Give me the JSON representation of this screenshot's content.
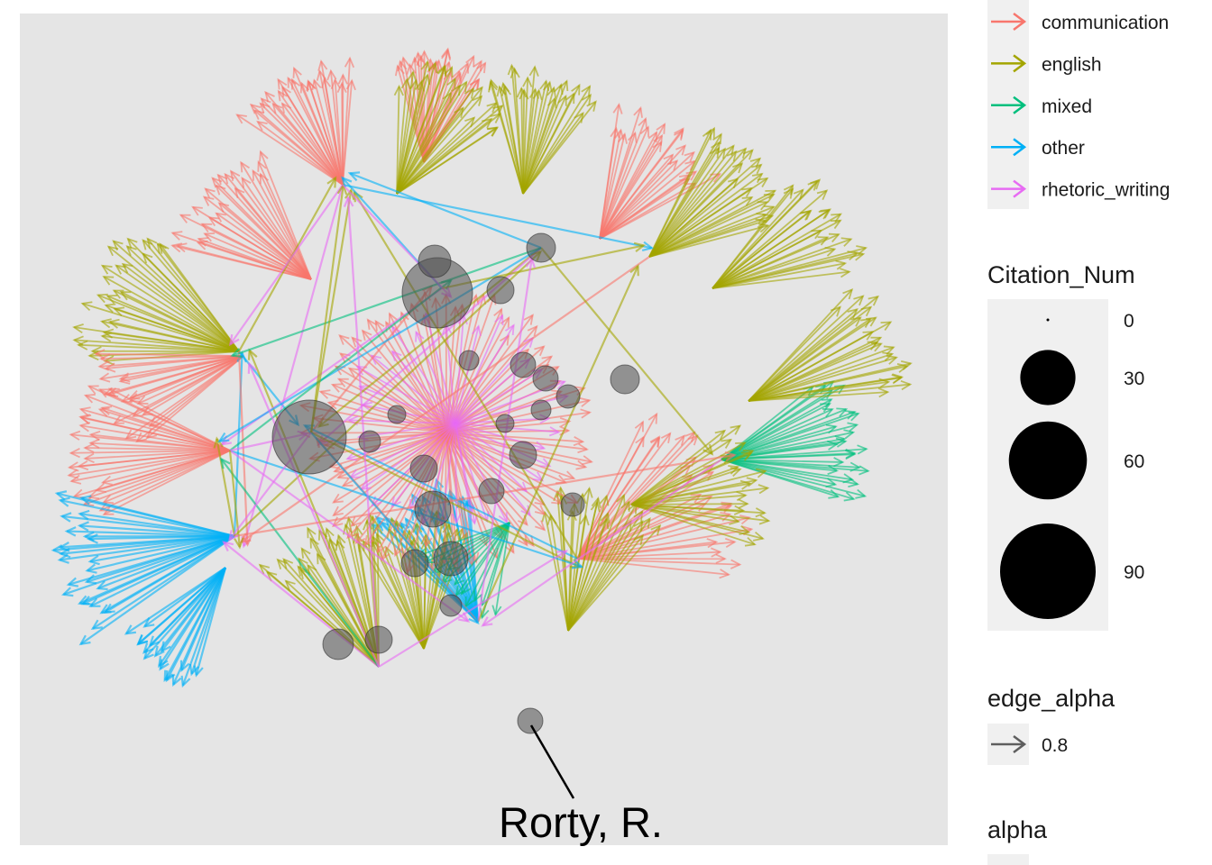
{
  "chart_data": {
    "type": "network",
    "panel_background": "#e5e5e5",
    "edge_alpha_value": 0.8,
    "color_legend": {
      "title": "",
      "entries": [
        {
          "label": "communication",
          "color": "#F8766D"
        },
        {
          "label": "english",
          "color": "#A3A500"
        },
        {
          "label": "mixed",
          "color": "#00BF7D"
        },
        {
          "label": "other",
          "color": "#00B0F6"
        },
        {
          "label": "rhetoric_writing",
          "color": "#E76BF3"
        }
      ]
    },
    "size_legend": {
      "title": "Citation_Num",
      "breaks": [
        0,
        30,
        60,
        90
      ]
    },
    "edge_alpha_legend": {
      "title": "edge_alpha",
      "label": "0.8"
    },
    "alpha_legend": {
      "title": "alpha"
    },
    "annotation": {
      "label": "Rorty, R."
    }
  }
}
